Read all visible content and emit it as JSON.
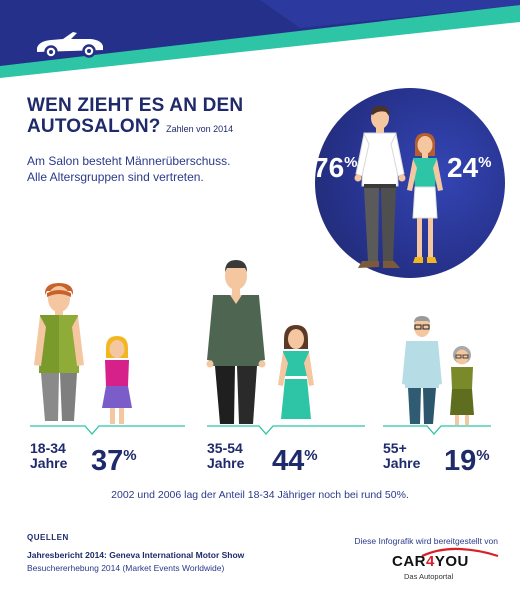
{
  "header": {
    "title_line1": "WEN ZIEHT ES AN DEN",
    "title_line2": "AUTOSALON?",
    "year_note": "Zahlen von 2014",
    "subtitle_line1": "Am Salon besteht Männerüberschuss.",
    "subtitle_line2": "Alle Altersgruppen sind vertreten."
  },
  "gender": {
    "male_value": "76",
    "female_value": "24",
    "unit": "%"
  },
  "age_groups": [
    {
      "range": "18-34",
      "word": "Jahre",
      "value": "37",
      "unit": "%"
    },
    {
      "range": "35-54",
      "word": "Jahre",
      "value": "44",
      "unit": "%"
    },
    {
      "range": "55+",
      "word": "Jahre",
      "value": "19",
      "unit": "%"
    }
  ],
  "note": "2002 und 2006 lag der Anteil 18-34 Jähriger noch bei rund 50%.",
  "sources": {
    "heading": "QUELLEN",
    "line1": "Jahresbericht 2014: Geneva International Motor Show",
    "line2": "Besuchererhebung 2014 (Market Events Worldwide)"
  },
  "provided_by": "Diese Infografik wird bereitgestellt von",
  "logo": {
    "part1": "CAR",
    "part2": "4",
    "part3": "YOU",
    "tagline": "Das Autoportal"
  },
  "colors": {
    "navy": "#1f2a6b",
    "teal": "#2ec4a6",
    "red": "#d7202a"
  }
}
